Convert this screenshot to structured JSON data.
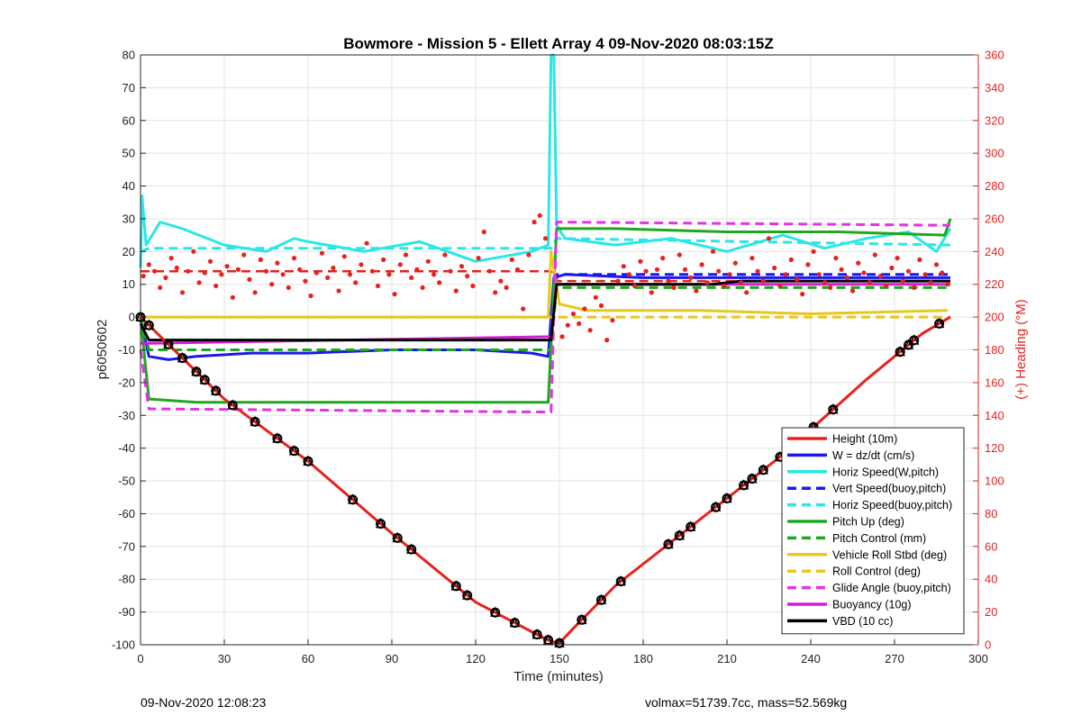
{
  "chart_data": {
    "type": "line",
    "title": "Bowmore - Mission 5 - Ellett Array 4 09-Nov-2020 08:03:15Z",
    "xlabel": "Time (minutes)",
    "ylabel": "p6050602",
    "y2label": "(+) Heading (°M)",
    "xlim": [
      0,
      300
    ],
    "ylim": [
      -100,
      80
    ],
    "y2lim": [
      0,
      360
    ],
    "xticks": [
      "0",
      "30",
      "60",
      "90",
      "120",
      "150",
      "180",
      "210",
      "240",
      "270",
      "300"
    ],
    "yticks": [
      "-100",
      "-90",
      "-80",
      "-70",
      "-60",
      "-50",
      "-40",
      "-30",
      "-20",
      "-10",
      "0",
      "10",
      "20",
      "30",
      "40",
      "50",
      "60",
      "70",
      "80"
    ],
    "y2ticks": [
      "0",
      "20",
      "40",
      "60",
      "80",
      "100",
      "120",
      "140",
      "160",
      "180",
      "200",
      "220",
      "240",
      "260",
      "280",
      "300",
      "320",
      "340",
      "360"
    ],
    "grid": true,
    "legend_position": "bottom-right",
    "series": [
      {
        "name": "Height (10m)",
        "color": "#e8211c",
        "style": "solid",
        "x": [
          0,
          30,
          60,
          90,
          120,
          140,
          147,
          150,
          155,
          170,
          200,
          230,
          260,
          280,
          290
        ],
        "y": [
          0,
          -25,
          -44,
          -66,
          -87,
          -96,
          -99,
          -99.5,
          -95,
          -82,
          -62,
          -42,
          -19,
          -5,
          0
        ]
      },
      {
        "name": "W = dz/dt (cm/s)",
        "color": "#1a1aee",
        "style": "solid",
        "x": [
          0,
          3,
          10,
          20,
          40,
          60,
          90,
          120,
          140,
          146,
          148,
          152,
          180,
          210,
          240,
          270,
          290
        ],
        "y": [
          0,
          -12,
          -13,
          -12,
          -11,
          -11,
          -10,
          -10,
          -11,
          -12,
          12,
          13,
          12,
          12,
          12,
          12,
          12
        ]
      },
      {
        "name": "Horiz Speed(W,pitch)",
        "color": "#2ae6e6",
        "style": "solid",
        "x": [
          0,
          0.5,
          2,
          7,
          15,
          30,
          45,
          55,
          60,
          80,
          100,
          120,
          140,
          146,
          147,
          148,
          149,
          152,
          170,
          190,
          210,
          230,
          245,
          260,
          275,
          285,
          290
        ],
        "y": [
          15,
          37,
          22,
          29,
          27,
          22,
          20,
          24,
          23,
          20,
          23,
          17,
          20,
          22,
          80,
          80,
          28,
          24,
          22,
          24,
          20,
          25,
          21,
          24,
          26,
          20,
          27
        ]
      },
      {
        "name": "Vert Speed(buoy,pitch)",
        "color": "#1a1aee",
        "style": "dashed",
        "x": [
          0,
          3,
          147,
          149,
          290
        ],
        "y": [
          0,
          -10,
          -10,
          13,
          13
        ]
      },
      {
        "name": "Horiz Speed(buoy,pitch)",
        "color": "#2ae6e6",
        "style": "dashed",
        "x": [
          0,
          3,
          147,
          149,
          290
        ],
        "y": [
          20,
          21,
          21,
          24,
          22
        ]
      },
      {
        "name": "Pitch Up (deg)",
        "color": "#1fa81f",
        "style": "solid",
        "x": [
          0,
          3,
          20,
          60,
          100,
          140,
          146,
          149,
          170,
          210,
          250,
          288,
          290
        ],
        "y": [
          0,
          -25,
          -26,
          -26,
          -26,
          -26,
          -26,
          27,
          27,
          26,
          26,
          25,
          30
        ]
      },
      {
        "name": "Pitch Control (mm)",
        "color": "#1fa81f",
        "style": "dashed",
        "x": [
          0,
          3,
          147,
          149,
          290
        ],
        "y": [
          0,
          -10,
          -10,
          9,
          9
        ]
      },
      {
        "name": "Vehicle Roll Stbd (deg)",
        "color": "#e6c81e",
        "style": "solid",
        "x": [
          0,
          3,
          146,
          147,
          150,
          160,
          200,
          240,
          289
        ],
        "y": [
          0,
          0,
          0,
          20,
          4,
          2,
          2,
          1,
          2
        ]
      },
      {
        "name": "Roll Control (deg)",
        "color": "#e6c81e",
        "style": "dashed",
        "x": [
          0,
          3,
          147,
          149,
          290
        ],
        "y": [
          0,
          0,
          0,
          0,
          0
        ]
      },
      {
        "name": "Glide Angle (buoy,pitch)",
        "color": "#e632e6",
        "style": "dashed",
        "x": [
          0,
          3,
          147,
          149,
          290
        ],
        "y": [
          -10,
          -28,
          -29,
          29,
          28
        ]
      },
      {
        "name": "Buoyancy (10g)",
        "color": "#d21fd2",
        "style": "solid",
        "x": [
          0,
          3,
          147,
          149,
          290
        ],
        "y": [
          -8,
          -8,
          -6,
          10,
          10
        ]
      },
      {
        "name": "VBD (10 cc)",
        "color": "#000000",
        "style": "solid",
        "x": [
          0,
          3,
          147,
          149,
          205,
          215,
          290
        ],
        "y": [
          -2,
          -7,
          -7,
          10,
          10,
          11,
          11
        ]
      }
    ],
    "heading_points": {
      "color": "#e8211c",
      "x": [
        1,
        3,
        5,
        7,
        9,
        11,
        13,
        15,
        17,
        19,
        21,
        23,
        25,
        27,
        29,
        31,
        33,
        35,
        37,
        39,
        41,
        43,
        45,
        47,
        49,
        51,
        53,
        55,
        57,
        59,
        61,
        63,
        65,
        67,
        69,
        71,
        73,
        75,
        77,
        79,
        81,
        83,
        85,
        87,
        89,
        91,
        93,
        95,
        97,
        99,
        101,
        103,
        105,
        107,
        109,
        111,
        113,
        115,
        117,
        119,
        121,
        123,
        125,
        127,
        129,
        131,
        133,
        135,
        137,
        139,
        141,
        143,
        145,
        151,
        153,
        155,
        157,
        159,
        161,
        163,
        165,
        167,
        169,
        171,
        173,
        175,
        177,
        179,
        181,
        183,
        185,
        187,
        189,
        191,
        193,
        195,
        197,
        199,
        201,
        203,
        205,
        207,
        209,
        211,
        213,
        215,
        217,
        219,
        221,
        223,
        225,
        227,
        229,
        231,
        233,
        235,
        237,
        239,
        241,
        243,
        245,
        247,
        249,
        251,
        253,
        255,
        257,
        259,
        261,
        263,
        265,
        267,
        269,
        271,
        273,
        275,
        277,
        279,
        281,
        283,
        285,
        287,
        289
      ],
      "y": [
        225,
        232,
        228,
        218,
        224,
        236,
        230,
        215,
        228,
        240,
        221,
        227,
        234,
        219,
        226,
        231,
        212,
        229,
        238,
        223,
        215,
        235,
        228,
        220,
        233,
        226,
        218,
        236,
        229,
        222,
        213,
        227,
        239,
        224,
        230,
        216,
        237,
        226,
        221,
        232,
        245,
        228,
        219,
        235,
        226,
        214,
        232,
        238,
        224,
        229,
        218,
        234,
        226,
        221,
        238,
        228,
        216,
        231,
        225,
        219,
        236,
        252,
        228,
        215,
        222,
        218,
        235,
        229,
        205,
        238,
        258,
        262,
        248,
        188,
        195,
        202,
        196,
        205,
        192,
        212,
        207,
        186,
        198,
        222,
        231,
        226,
        219,
        234,
        228,
        215,
        229,
        236,
        222,
        218,
        238,
        229,
        224,
        216,
        232,
        221,
        240,
        228,
        219,
        226,
        233,
        221,
        215,
        236,
        228,
        222,
        248,
        230,
        219,
        226,
        235,
        223,
        214,
        232,
        240,
        226,
        221,
        218,
        236,
        229,
        224,
        216,
        233,
        227,
        221,
        238,
        225,
        219,
        230,
        236,
        222,
        228,
        218,
        235,
        226,
        221,
        232,
        227,
        220
      ]
    },
    "heading_commanded": {
      "color": "#e8211c",
      "style": "dashed",
      "x": [
        0,
        147,
        149,
        290
      ],
      "y": [
        228,
        228,
        222,
        222
      ]
    },
    "markers": {
      "color": "#000000",
      "x": [
        0,
        3,
        10,
        15,
        20,
        23,
        27,
        33,
        41,
        49,
        55,
        60,
        76,
        86,
        92,
        97,
        113,
        117,
        127,
        134,
        142,
        146,
        150,
        158,
        165,
        172,
        189,
        193,
        197,
        206,
        210,
        216,
        219,
        223,
        229,
        241,
        248,
        272,
        275,
        277,
        286
      ]
    }
  },
  "footer": {
    "left": "09-Nov-2020 12:08:23",
    "right": "volmax=51739.7cc, mass=52.569kg"
  }
}
